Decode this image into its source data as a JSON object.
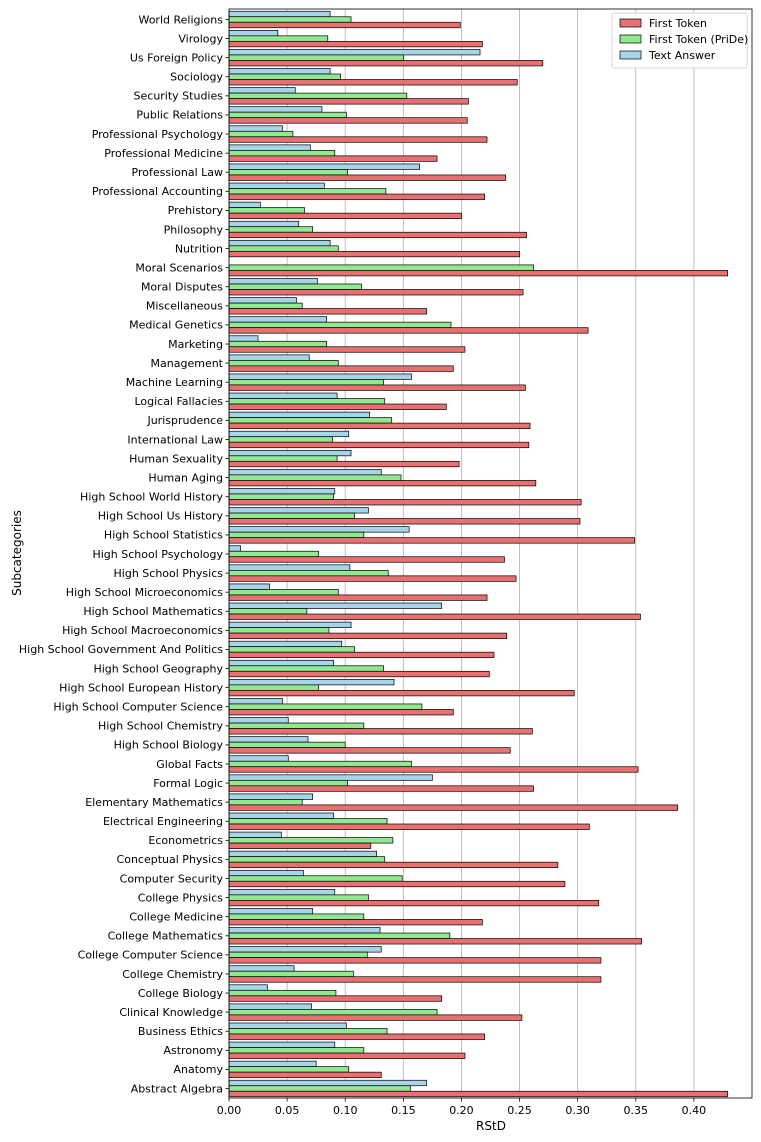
{
  "chart_data": {
    "type": "bar",
    "orientation": "horizontal",
    "xlabel": "RStD",
    "ylabel": "Subcategories",
    "xlim": [
      0,
      0.45
    ],
    "xticks": [
      "0.00",
      "0.05",
      "0.10",
      "0.15",
      "0.20",
      "0.25",
      "0.30",
      "0.35",
      "0.40"
    ],
    "grid": "vertical",
    "legend_position": "top-right",
    "categories": [
      "Abstract Algebra",
      "Anatomy",
      "Astronomy",
      "Business Ethics",
      "Clinical Knowledge",
      "College Biology",
      "College Chemistry",
      "College Computer Science",
      "College Mathematics",
      "College Medicine",
      "College Physics",
      "Computer Security",
      "Conceptual Physics",
      "Econometrics",
      "Electrical Engineering",
      "Elementary Mathematics",
      "Formal Logic",
      "Global Facts",
      "High School Biology",
      "High School Chemistry",
      "High School Computer Science",
      "High School European History",
      "High School Geography",
      "High School Government And Politics",
      "High School Macroeconomics",
      "High School Mathematics",
      "High School Microeconomics",
      "High School Physics",
      "High School Psychology",
      "High School Statistics",
      "High School Us History",
      "High School World History",
      "Human Aging",
      "Human Sexuality",
      "International Law",
      "Jurisprudence",
      "Logical Fallacies",
      "Machine Learning",
      "Management",
      "Marketing",
      "Medical Genetics",
      "Miscellaneous",
      "Moral Disputes",
      "Moral Scenarios",
      "Nutrition",
      "Philosophy",
      "Prehistory",
      "Professional Accounting",
      "Professional Law",
      "Professional Medicine",
      "Professional Psychology",
      "Public Relations",
      "Security Studies",
      "Sociology",
      "Us Foreign Policy",
      "Virology",
      "World Religions"
    ],
    "series": [
      {
        "name": "First Token",
        "color": "#e87070",
        "values": [
          0.429,
          0.131,
          0.203,
          0.22,
          0.252,
          0.183,
          0.32,
          0.32,
          0.355,
          0.218,
          0.318,
          0.289,
          0.283,
          0.122,
          0.31,
          0.386,
          0.262,
          0.352,
          0.242,
          0.261,
          0.193,
          0.297,
          0.224,
          0.228,
          0.239,
          0.354,
          0.222,
          0.247,
          0.237,
          0.349,
          0.302,
          0.303,
          0.264,
          0.198,
          0.258,
          0.259,
          0.187,
          0.255,
          0.193,
          0.203,
          0.309,
          0.17,
          0.253,
          0.429,
          0.25,
          0.256,
          0.2,
          0.22,
          0.238,
          0.179,
          0.222,
          0.205,
          0.206,
          0.248,
          0.27,
          0.218,
          0.199
        ]
      },
      {
        "name": "First Token (PriDe)",
        "color": "#90e890",
        "values": [
          0.156,
          0.103,
          0.116,
          0.136,
          0.179,
          0.092,
          0.107,
          0.119,
          0.19,
          0.116,
          0.12,
          0.149,
          0.134,
          0.141,
          0.136,
          0.063,
          0.102,
          0.157,
          0.1,
          0.116,
          0.166,
          0.077,
          0.133,
          0.108,
          0.086,
          0.067,
          0.094,
          0.137,
          0.077,
          0.116,
          0.108,
          0.09,
          0.148,
          0.093,
          0.089,
          0.14,
          0.134,
          0.133,
          0.094,
          0.084,
          0.191,
          0.063,
          0.114,
          0.262,
          0.094,
          0.072,
          0.065,
          0.135,
          0.102,
          0.091,
          0.055,
          0.101,
          0.153,
          0.096,
          0.15,
          0.085,
          0.105
        ]
      },
      {
        "name": "Text Answer",
        "color": "#a8d4ea",
        "values": [
          0.17,
          0.075,
          0.091,
          0.101,
          0.071,
          0.033,
          0.056,
          0.131,
          0.13,
          0.072,
          0.091,
          0.064,
          0.127,
          0.045,
          0.09,
          0.072,
          0.175,
          0.051,
          0.068,
          0.051,
          0.046,
          0.142,
          0.09,
          0.097,
          0.105,
          0.183,
          0.035,
          0.104,
          0.01,
          0.155,
          0.12,
          0.091,
          0.131,
          0.105,
          0.103,
          0.121,
          0.093,
          0.157,
          0.069,
          0.025,
          0.084,
          0.058,
          0.076,
          0.0,
          0.087,
          0.06,
          0.027,
          0.082,
          0.164,
          0.07,
          0.046,
          0.08,
          0.057,
          0.087,
          0.216,
          0.042,
          0.087
        ]
      }
    ]
  }
}
